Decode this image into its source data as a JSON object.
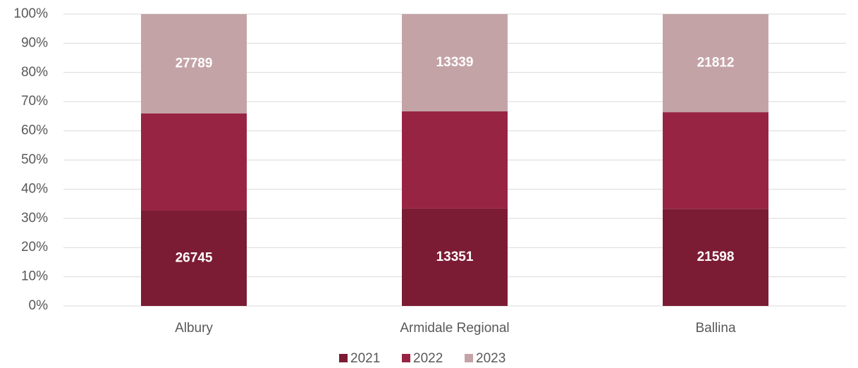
{
  "chart_data": {
    "type": "bar",
    "stacked": "percent",
    "categories": [
      "Albury",
      "Armidale Regional",
      "Ballina"
    ],
    "series": [
      {
        "name": "2021",
        "color": "#7b1c34",
        "values": [
          26745,
          13351,
          21598
        ],
        "show_labels": true
      },
      {
        "name": "2022",
        "color": "#982443",
        "values": [
          27200,
          13340,
          21500
        ],
        "show_labels": false
      },
      {
        "name": "2023",
        "color": "#c4a3a7",
        "values": [
          27789,
          13339,
          21812
        ],
        "show_labels": true
      }
    ],
    "ylim": [
      0,
      100
    ],
    "yticks": [
      {
        "value": 0,
        "label": "0%"
      },
      {
        "value": 10,
        "label": "10%"
      },
      {
        "value": 20,
        "label": "20%"
      },
      {
        "value": 30,
        "label": "30%"
      },
      {
        "value": 40,
        "label": "40%"
      },
      {
        "value": 50,
        "label": "50%"
      },
      {
        "value": 60,
        "label": "60%"
      },
      {
        "value": 70,
        "label": "70%"
      },
      {
        "value": 80,
        "label": "80%"
      },
      {
        "value": 90,
        "label": "90%"
      },
      {
        "value": 100,
        "label": "100%"
      }
    ],
    "grid": true,
    "legend": "bottom"
  }
}
